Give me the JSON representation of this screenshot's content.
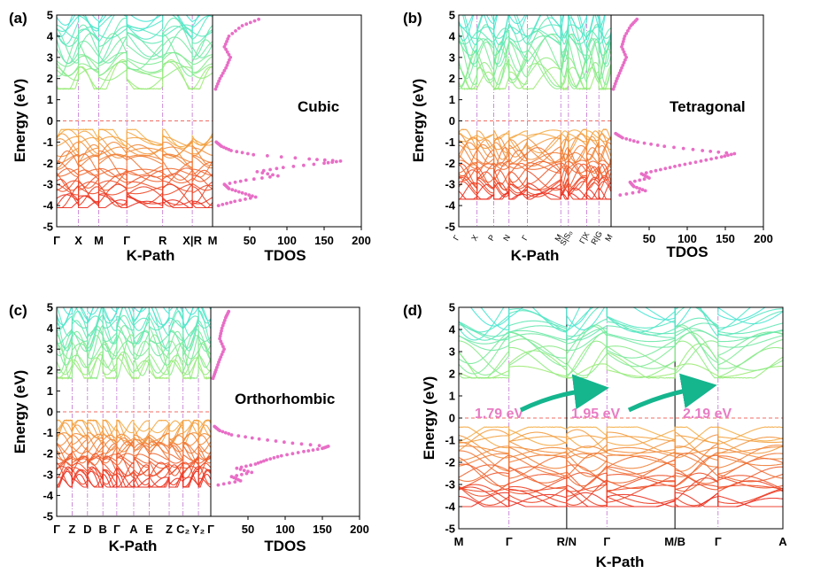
{
  "chart_data": {
    "type": "line",
    "colors": {
      "vb_top": "#f5b84a",
      "vb_bottom": "#ea2a1f",
      "cb_top": "#46e6d4",
      "cb_bottom": "#a6ec6b",
      "dos": "#e86ec6",
      "fermi": "#f06c64",
      "kline": "#c070d0",
      "gap": "#e87cc4",
      "arrow": "#15b58e"
    },
    "energy_range": [
      -5,
      5
    ],
    "energy_ticks": [
      "-5",
      "-4",
      "-3",
      "-2",
      "-1",
      "0",
      "1",
      "2",
      "3",
      "4",
      "5"
    ],
    "ylabel": "Energy (eV)",
    "kpath_label": "K-Path",
    "dos_label": "TDOS",
    "dos_ticks": [
      "50",
      "100",
      "150",
      "200"
    ],
    "panels": [
      {
        "tag": "(a)",
        "phase": "Cubic",
        "kpoints": [
          "Γ",
          "X",
          "M",
          "Γ",
          "R",
          "X|R",
          "M"
        ],
        "vb_max": -0.4,
        "vb_min": -4.1,
        "cb_min": 1.5,
        "cb_max": 5.0,
        "dos_peak_energy": -1.9,
        "dos_peak_value": 172,
        "dos_points": [
          [
            -4.0,
            8
          ],
          [
            -3.8,
            30
          ],
          [
            -3.6,
            58
          ],
          [
            -3.4,
            40
          ],
          [
            -3.2,
            22
          ],
          [
            -3.0,
            16
          ],
          [
            -2.8,
            45
          ],
          [
            -2.6,
            88
          ],
          [
            -2.4,
            60
          ],
          [
            -2.2,
            95
          ],
          [
            -2.0,
            150
          ],
          [
            -1.9,
            172
          ],
          [
            -1.8,
            130
          ],
          [
            -1.6,
            55
          ],
          [
            -1.4,
            25
          ],
          [
            -1.2,
            12
          ],
          [
            -1.0,
            5
          ],
          [
            1.5,
            4
          ],
          [
            2.0,
            10
          ],
          [
            2.5,
            18
          ],
          [
            3.0,
            24
          ],
          [
            3.5,
            16
          ],
          [
            4.0,
            22
          ],
          [
            4.5,
            40
          ],
          [
            4.8,
            62
          ]
        ]
      },
      {
        "tag": "(b)",
        "phase": "Tetragonal",
        "kpoints": [
          "Γ",
          "X",
          "P",
          "N",
          "Γ",
          "M",
          "S|S₀",
          "Γ|X",
          "R|G",
          "M"
        ],
        "vb_max": -0.4,
        "vb_min": -3.7,
        "cb_min": 1.5,
        "cb_max": 5.0,
        "dos_peak_energy": -1.55,
        "dos_peak_value": 162,
        "dos_points": [
          [
            -3.5,
            12
          ],
          [
            -3.3,
            45
          ],
          [
            -3.1,
            30
          ],
          [
            -2.9,
            25
          ],
          [
            -2.7,
            50
          ],
          [
            -2.5,
            40
          ],
          [
            -2.3,
            65
          ],
          [
            -2.1,
            90
          ],
          [
            -1.9,
            118
          ],
          [
            -1.7,
            145
          ],
          [
            -1.55,
            162
          ],
          [
            -1.4,
            120
          ],
          [
            -1.2,
            70
          ],
          [
            -1.0,
            35
          ],
          [
            -0.8,
            15
          ],
          [
            -0.6,
            6
          ],
          [
            1.5,
            3
          ],
          [
            2.0,
            8
          ],
          [
            2.5,
            14
          ],
          [
            3.0,
            20
          ],
          [
            3.5,
            14
          ],
          [
            4.0,
            18
          ],
          [
            4.5,
            26
          ],
          [
            4.8,
            34
          ]
        ]
      },
      {
        "tag": "(c)",
        "phase": "Orthorhombic",
        "kpoints": [
          "Γ",
          "Z",
          "D",
          "B",
          "Γ",
          "A",
          "E",
          "Z",
          "C₂",
          "Y₂",
          "Γ"
        ],
        "vb_max": -0.4,
        "vb_min": -3.6,
        "cb_min": 1.6,
        "cb_max": 5.0,
        "dos_peak_energy": -1.65,
        "dos_peak_value": 158,
        "dos_points": [
          [
            -3.5,
            10
          ],
          [
            -3.3,
            40
          ],
          [
            -3.1,
            28
          ],
          [
            -2.9,
            55
          ],
          [
            -2.7,
            35
          ],
          [
            -2.5,
            60
          ],
          [
            -2.3,
            75
          ],
          [
            -2.1,
            95
          ],
          [
            -1.9,
            125
          ],
          [
            -1.75,
            150
          ],
          [
            -1.65,
            158
          ],
          [
            -1.5,
            110
          ],
          [
            -1.3,
            65
          ],
          [
            -1.1,
            28
          ],
          [
            -0.9,
            12
          ],
          [
            -0.7,
            5
          ],
          [
            1.6,
            3
          ],
          [
            2.0,
            7
          ],
          [
            2.5,
            12
          ],
          [
            3.0,
            18
          ],
          [
            3.5,
            12
          ],
          [
            4.0,
            15
          ],
          [
            4.5,
            20
          ],
          [
            4.8,
            24
          ]
        ]
      },
      {
        "tag": "(d)",
        "kpoints": [
          "M",
          "Γ",
          "R/N",
          "Γ",
          "M/B",
          "Γ",
          "A"
        ],
        "vb_max": -0.4,
        "vb_min": -4.0,
        "cb_min": 1.8,
        "cb_max": 5.0,
        "gaps": [
          "1.79 eV",
          "1.95 eV",
          "2.19 eV"
        ]
      }
    ]
  }
}
